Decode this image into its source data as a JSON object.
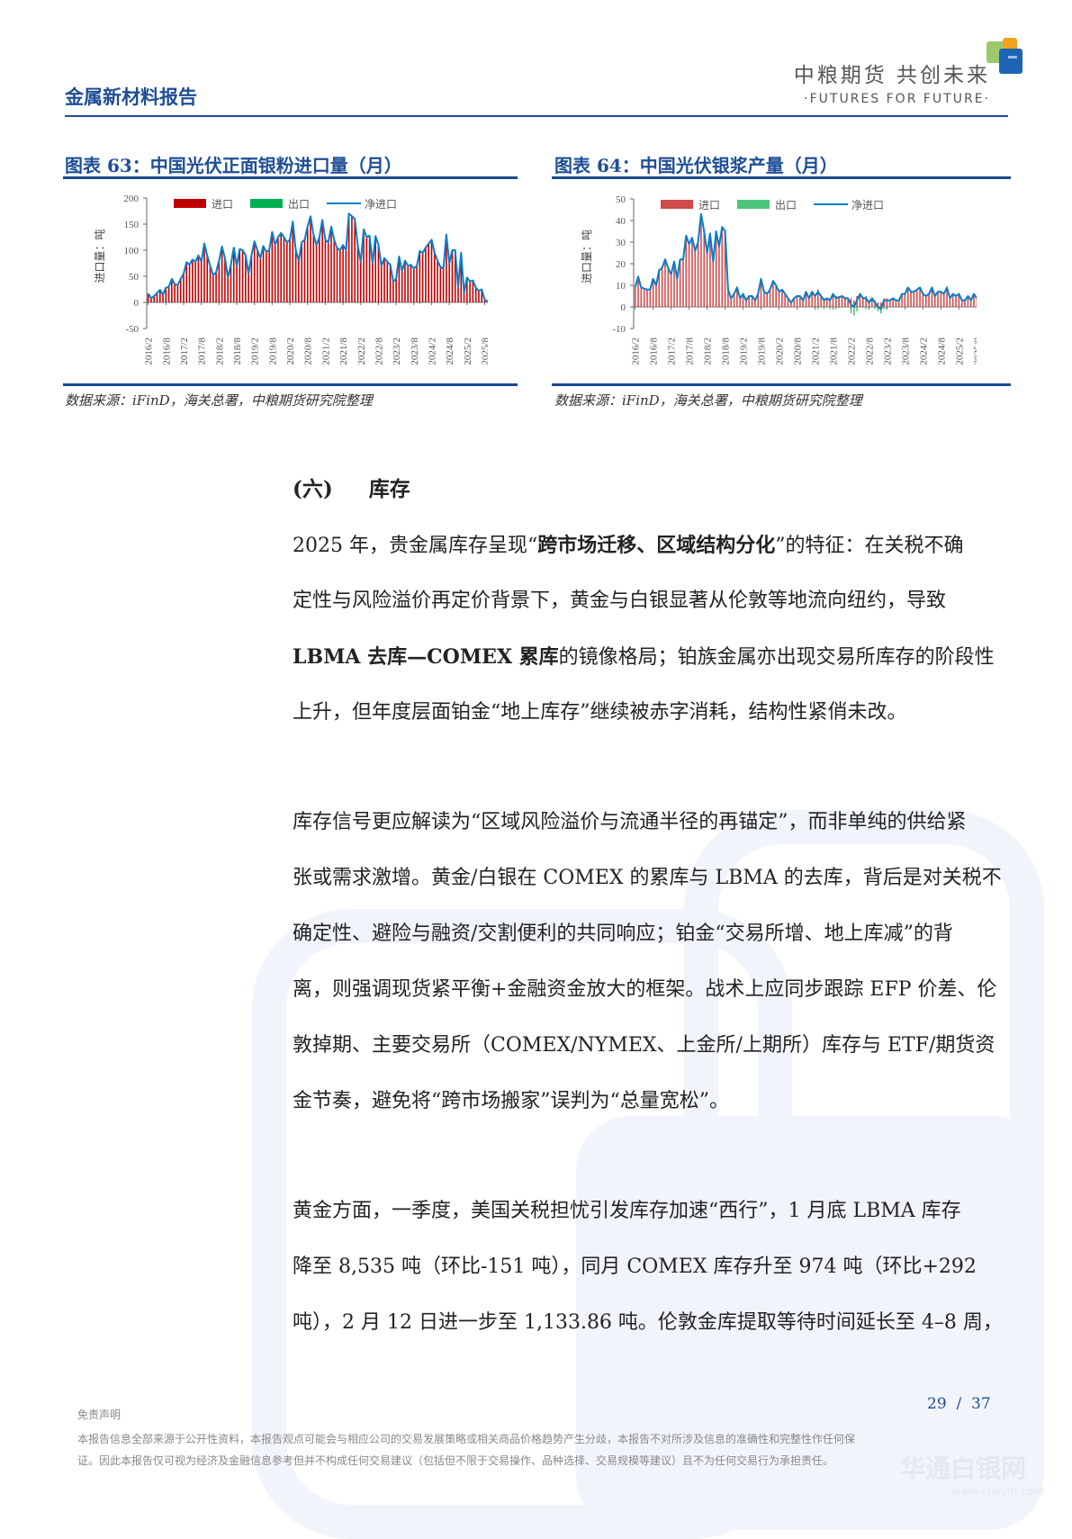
{
  "header": {
    "title": "金属新材料报告",
    "logo_cn": "中粮期货  共创未来",
    "logo_en": "·FUTURES FOR FUTURE·",
    "accent": "#1f4e96"
  },
  "charts": {
    "source_note": "数据来源：iFinD，海关总署，中粮期货研究院整理"
  },
  "chart_data": [
    {
      "type": "bar",
      "title": "图表 63：中国光伏正面银粉进口量（月）",
      "ylabel": "进口量：吨",
      "ylim": [
        -50,
        200
      ],
      "yticks": [
        "200",
        "150",
        "100",
        "50",
        "0",
        "-50"
      ],
      "ytick_values": [
        200,
        150,
        100,
        50,
        0,
        -50
      ],
      "xticks": [
        "2016/2",
        "2016/8",
        "2017/2",
        "2017/8",
        "2018/2",
        "2018/8",
        "2019/2",
        "2019/8",
        "2020/2",
        "2020/8",
        "2021/2",
        "2021/8",
        "2022/2",
        "2022/8",
        "2023/2",
        "2023/8",
        "2024/2",
        "2024/8",
        "2025/2",
        "2025/8"
      ],
      "x_start": "2016/2",
      "x_end": "2025/11",
      "legend": [
        "进口",
        "出口",
        "净进口"
      ],
      "legend_placement": "top",
      "colors": {
        "import": "#c00000",
        "export": "#00b050",
        "net": "#0a7cc8"
      },
      "series": [
        {
          "name": "进口",
          "values": [
            17,
            8,
            12,
            18,
            24,
            15,
            28,
            30,
            45,
            35,
            33,
            45,
            55,
            77,
            72,
            82,
            78,
            90,
            78,
            113,
            90,
            70,
            52,
            58,
            80,
            107,
            85,
            48,
            72,
            105,
            70,
            102,
            100,
            90,
            55,
            90,
            117,
            100,
            85,
            108,
            97,
            100,
            135,
            110,
            125,
            133,
            125,
            115,
            120,
            155,
            100,
            80,
            115,
            120,
            145,
            165,
            130,
            110,
            125,
            158,
            120,
            115,
            145,
            120,
            105,
            100,
            110,
            100,
            170,
            165,
            160,
            110,
            78,
            140,
            125,
            128,
            75,
            127,
            110,
            70,
            85,
            78,
            72,
            40,
            45,
            88,
            60,
            80,
            70,
            72,
            65,
            70,
            100,
            95,
            105,
            112,
            120,
            95,
            80,
            68,
            65,
            130,
            75,
            100,
            100,
            30,
            95,
            18,
            48,
            40,
            42,
            28,
            22,
            25,
            5,
            2,
            2,
            1
          ]
        },
        {
          "name": "出口",
          "values": [
            0,
            0,
            0,
            0,
            0,
            0,
            0,
            0,
            0,
            0,
            0,
            0,
            0,
            0,
            0,
            0,
            0,
            0,
            0,
            0,
            0,
            0,
            0,
            0,
            0,
            0,
            0,
            0,
            0,
            0,
            0,
            0,
            0,
            0,
            0,
            0,
            0,
            0,
            0,
            0,
            0,
            0,
            0,
            0,
            0,
            0,
            0,
            0,
            0,
            0,
            0,
            0,
            0,
            0,
            0,
            0,
            0,
            0,
            0,
            0,
            0,
            0,
            0,
            0,
            0,
            -1,
            0,
            0,
            0,
            0,
            0,
            -1,
            0,
            0,
            0,
            0,
            0,
            0,
            0,
            0,
            0,
            0,
            0,
            0,
            0,
            0,
            0,
            0,
            0,
            0,
            0,
            0,
            -2,
            0,
            0,
            0,
            0,
            0,
            0,
            0,
            0,
            0,
            0,
            0,
            0,
            0,
            0,
            0,
            0,
            0,
            0,
            0,
            0,
            0,
            0,
            0,
            0,
            0
          ]
        },
        {
          "name": "净进口",
          "values": [
            17,
            8,
            12,
            18,
            24,
            15,
            28,
            30,
            45,
            35,
            33,
            45,
            55,
            77,
            72,
            82,
            78,
            90,
            78,
            113,
            90,
            70,
            52,
            58,
            80,
            107,
            85,
            48,
            72,
            105,
            70,
            102,
            100,
            90,
            55,
            90,
            117,
            100,
            85,
            108,
            97,
            100,
            135,
            110,
            125,
            133,
            125,
            115,
            120,
            155,
            100,
            80,
            115,
            120,
            145,
            165,
            130,
            110,
            125,
            158,
            120,
            115,
            145,
            120,
            104,
            100,
            110,
            100,
            170,
            165,
            160,
            109,
            78,
            140,
            125,
            128,
            75,
            127,
            110,
            70,
            85,
            78,
            72,
            40,
            45,
            88,
            60,
            80,
            70,
            72,
            65,
            70,
            98,
            95,
            105,
            112,
            120,
            95,
            80,
            68,
            65,
            130,
            75,
            100,
            100,
            30,
            95,
            18,
            48,
            40,
            42,
            28,
            22,
            25,
            5,
            2,
            2,
            1
          ]
        }
      ]
    },
    {
      "type": "bar",
      "title": "图表 64：中国光伏银浆产量（月）",
      "ylabel": "进口量：吨",
      "ylim": [
        -10,
        50
      ],
      "yticks": [
        "50",
        "40",
        "30",
        "20",
        "10",
        "0",
        "-10"
      ],
      "ytick_values": [
        50,
        40,
        30,
        20,
        10,
        0,
        -10
      ],
      "xticks": [
        "2016/2",
        "2016/8",
        "2017/2",
        "2017/8",
        "2018/2",
        "2018/8",
        "2019/2",
        "2019/8",
        "2020/2",
        "2020/8",
        "2021/2",
        "2021/8",
        "2022/2",
        "2022/8",
        "2023/2",
        "2023/8",
        "2024/2",
        "2024/8",
        "2025/2",
        "2025/8"
      ],
      "x_start": "2016/2",
      "x_end": "2025/11",
      "legend": [
        "进口",
        "出口",
        "净进口"
      ],
      "legend_placement": "top",
      "colors": {
        "import": "#d24b4b",
        "export": "#4cc47a",
        "net": "#0a7cc8"
      },
      "series": [
        {
          "name": "进口",
          "values": [
            9,
            14,
            9,
            8.5,
            8,
            8,
            13,
            10,
            17,
            18,
            22,
            18,
            15,
            21,
            13,
            22,
            22,
            33,
            29,
            32,
            26,
            30,
            43,
            35,
            25,
            34,
            21,
            35,
            28,
            37,
            35,
            8,
            4,
            6,
            9,
            4,
            6,
            3,
            5,
            5,
            3,
            6,
            13,
            7,
            6,
            8,
            12,
            10,
            7,
            8,
            6,
            4,
            2,
            4,
            5,
            5,
            3,
            7,
            4,
            7,
            5,
            8,
            5,
            4,
            4,
            4,
            6,
            5,
            5,
            5,
            4,
            4,
            4,
            3,
            5,
            6,
            4,
            5,
            3,
            4,
            3,
            2,
            2,
            4,
            4,
            3,
            4,
            3,
            3,
            6,
            6,
            9,
            7,
            7,
            8,
            9,
            6,
            5,
            6,
            9,
            5,
            7,
            7,
            6,
            9,
            4,
            6,
            5,
            6,
            3,
            3,
            5,
            3,
            6,
            4,
            4,
            4,
            3
          ]
        },
        {
          "name": "出口",
          "values": [
            0,
            0,
            0,
            0,
            0,
            0,
            0,
            0,
            0,
            0,
            0,
            0,
            0,
            0,
            0,
            0,
            0,
            0,
            0,
            0,
            0,
            0,
            0,
            0,
            0,
            0,
            0,
            0,
            0,
            0,
            0,
            0,
            0,
            0,
            0,
            0,
            0,
            0,
            0,
            0,
            0,
            0,
            0,
            0,
            0,
            0,
            0,
            0,
            0,
            0,
            0,
            0,
            0,
            0,
            0,
            0,
            0,
            0,
            0,
            0,
            0,
            -1,
            0,
            -1,
            0,
            -1,
            0,
            -1,
            -0.5,
            0,
            0,
            0,
            -3,
            -4,
            -2,
            0,
            0,
            -1,
            -1,
            0,
            -1,
            -2,
            -3,
            -1,
            -1,
            0,
            0,
            0,
            0,
            0,
            0,
            0,
            0,
            0,
            0,
            0,
            0,
            0,
            0,
            0,
            0,
            0,
            0,
            0,
            0,
            0,
            0,
            0,
            0,
            0,
            0,
            0,
            0,
            0,
            0,
            0,
            0,
            0
          ]
        },
        {
          "name": "净进口",
          "values": [
            9,
            14,
            9,
            8.5,
            8,
            8,
            13,
            10,
            17,
            18,
            22,
            18,
            15,
            21,
            13,
            22,
            22,
            33,
            29,
            32,
            26,
            30,
            43,
            35,
            25,
            34,
            21,
            35,
            28,
            37,
            35,
            8,
            4,
            6,
            9,
            4,
            6,
            3,
            5,
            5,
            3,
            6,
            13,
            7,
            6,
            8,
            12,
            10,
            7,
            8,
            6,
            4,
            2,
            4,
            5,
            5,
            3,
            7,
            4,
            7,
            5,
            7,
            5,
            3,
            4,
            3,
            6,
            4,
            4.5,
            5,
            4,
            4,
            1,
            0,
            3,
            6,
            4,
            4,
            2,
            4,
            2,
            0,
            -1,
            3,
            3,
            3,
            4,
            3,
            3,
            6,
            6,
            9,
            7,
            7,
            8,
            9,
            6,
            5,
            6,
            9,
            5,
            7,
            7,
            6,
            9,
            4,
            6,
            5,
            6,
            3,
            3,
            5,
            3,
            6,
            4,
            4,
            4,
            3
          ]
        }
      ]
    }
  ],
  "section": {
    "number": "(六)",
    "title": "库存"
  },
  "paragraphs": [
    [
      [
        {
          "t": "2025 年，贵金属库存呈现“"
        },
        {
          "t": "跨市场迁移、区域结构分化",
          "b": true
        },
        {
          "t": "”的特征：在关税不确"
        }
      ],
      [
        {
          "t": "定性与风险溢价再定价背景下，黄金与白银显著从伦敦等地流向纽约，导致"
        }
      ],
      [
        {
          "t": "LBMA 去库—COMEX 累库",
          "b": true
        },
        {
          "t": "的镜像格局；铂族金属亦出现交易所库存的阶段性"
        }
      ],
      [
        {
          "t": "上升，但年度层面铂金“地上库存”继续被赤字消耗，结构性紧俏未改。"
        }
      ]
    ],
    [
      [
        {
          "t": "库存信号更应解读为“区域风险溢价与流通半径的再锚定”，而非单纯的供给紧"
        }
      ],
      [
        {
          "t": "张或需求激增。黄金/白银在 COMEX 的累库与 LBMA 的去库，背后是对关税不"
        }
      ],
      [
        {
          "t": "确定性、避险与融资/交割便利的共同响应；铂金“交易所增、地上库减”的背"
        }
      ],
      [
        {
          "t": "离，则强调现货紧平衡+金融资金放大的框架。战术上应同步跟踪 EFP 价差、伦"
        }
      ],
      [
        {
          "t": "敦掉期、主要交易所（COMEX/NYMEX、上金所/上期所）库存与 ETF/期货资"
        }
      ],
      [
        {
          "t": "金节奏，避免将“跨市场搬家”误判为“总量宽松”。"
        }
      ]
    ],
    [
      [
        {
          "t": "黄金方面，一季度，美国关税担忧引发库存加速“西行”，1 月底 LBMA 库存"
        }
      ],
      [
        {
          "t": "降至 8,535 吨（环比-151 吨），同月 COMEX 库存升至 974 吨（环比+292"
        }
      ],
      [
        {
          "t": "吨），2 月 12 日进一步至 1,133.86 吨。伦敦金库提取等待时间延长至 4–8 周，"
        }
      ]
    ]
  ],
  "footer": {
    "page": "29",
    "page_sep": "/",
    "total": "37",
    "disclaimer_title": "免责声明",
    "disclaimer_lines": [
      "本报告信息全部来源于公开性资料，本报告观点可能会与相应公司的交易发展策略或相关商品价格趋势产生分歧，本报告不对所涉及信息的准确性和完整性作任何保",
      "证。因此本报告仅可视为经济及金融信息参考但并不构成任何交易建议（包括但不限于交易操作、品种选择、交易规模等建议）且不为任何交易行为承担责任。"
    ]
  },
  "watermark": {
    "text": "华通白银网",
    "url": "www.ctieyin.com"
  }
}
